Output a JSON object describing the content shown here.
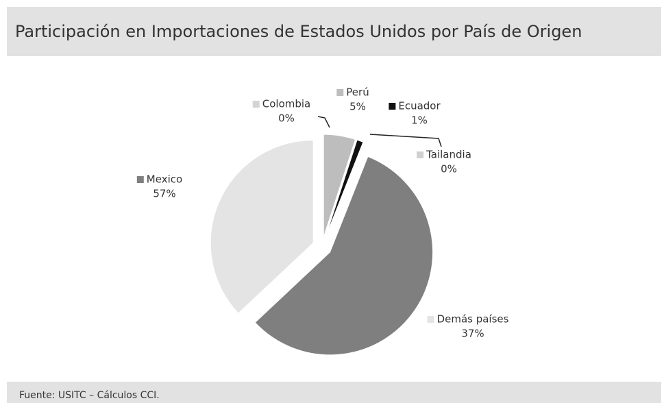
{
  "chart_data": {
    "type": "pie",
    "title": "Participación en Importaciones de Estados Unidos por País de Origen",
    "categories": [
      "Colombia",
      "Perú",
      "Ecuador",
      "Tailandia",
      "Mexico",
      "Demás países"
    ],
    "values": [
      0,
      5,
      1,
      0,
      57,
      37
    ],
    "value_labels": [
      "0%",
      "5%",
      "1%",
      "0%",
      "57%",
      "37%"
    ],
    "colors": [
      "#d4d4d4",
      "#bdbdbd",
      "#111111",
      "#d0d0d0",
      "#7f7f7f",
      "#e4e4e4"
    ],
    "footnote": "Fuente: USITC – Cálculos CCI."
  }
}
